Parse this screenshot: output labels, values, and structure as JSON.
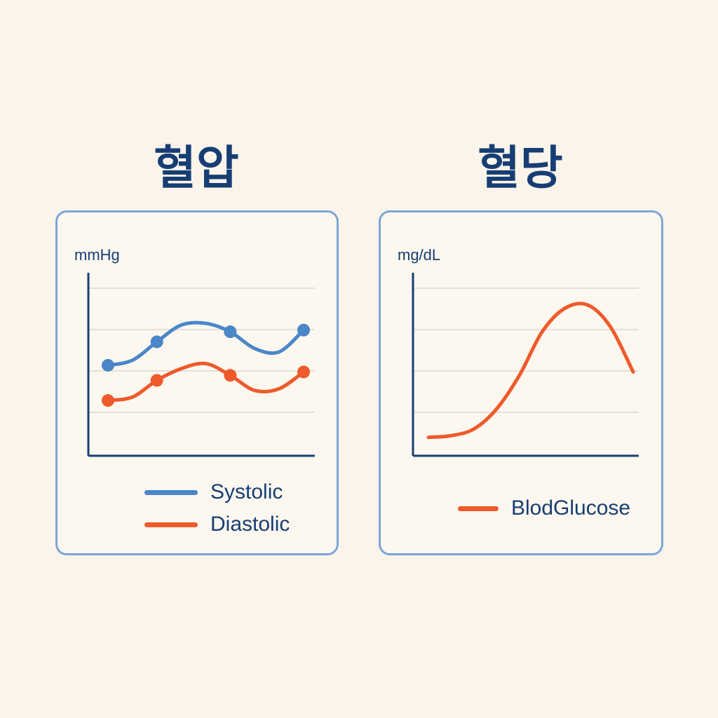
{
  "titles": {
    "left": "혈압",
    "right": "혈당"
  },
  "colors": {
    "background": "#fbf4ea",
    "card_border": "#7ba7d8",
    "axis": "#173e74",
    "systolic": "#4a86c8",
    "diastolic": "#ee5a2b",
    "glucose": "#ee5a2b",
    "gridline": "#e4e0d8"
  },
  "chart_data": [
    {
      "type": "line",
      "title": "혈압",
      "ylabel": "mmHg",
      "xlabel": "",
      "x": [
        1,
        2,
        3,
        4,
        5,
        6,
        7,
        8,
        9
      ],
      "ylim": [
        0,
        100
      ],
      "grid": true,
      "legend_position": "bottom-right",
      "series": [
        {
          "name": "Systolic",
          "values": [
            54,
            57,
            68,
            78,
            79,
            74,
            64,
            62,
            75
          ],
          "markers": [
            0,
            2,
            5,
            8
          ]
        },
        {
          "name": "Diastolic",
          "values": [
            33,
            35,
            45,
            52,
            55,
            48,
            39,
            40,
            50
          ],
          "markers": [
            0,
            2,
            5,
            8
          ]
        }
      ]
    },
    {
      "type": "line",
      "title": "혈당",
      "ylabel": "mg/dL",
      "xlabel": "",
      "x": [
        1,
        2,
        3,
        4,
        5,
        6,
        7,
        8,
        9,
        10
      ],
      "ylim": [
        0,
        100
      ],
      "grid": true,
      "legend_position": "bottom-right",
      "series": [
        {
          "name": "BlodGlucose",
          "values": [
            11,
            12,
            16,
            28,
            48,
            74,
            88,
            90,
            77,
            50
          ]
        }
      ]
    }
  ]
}
